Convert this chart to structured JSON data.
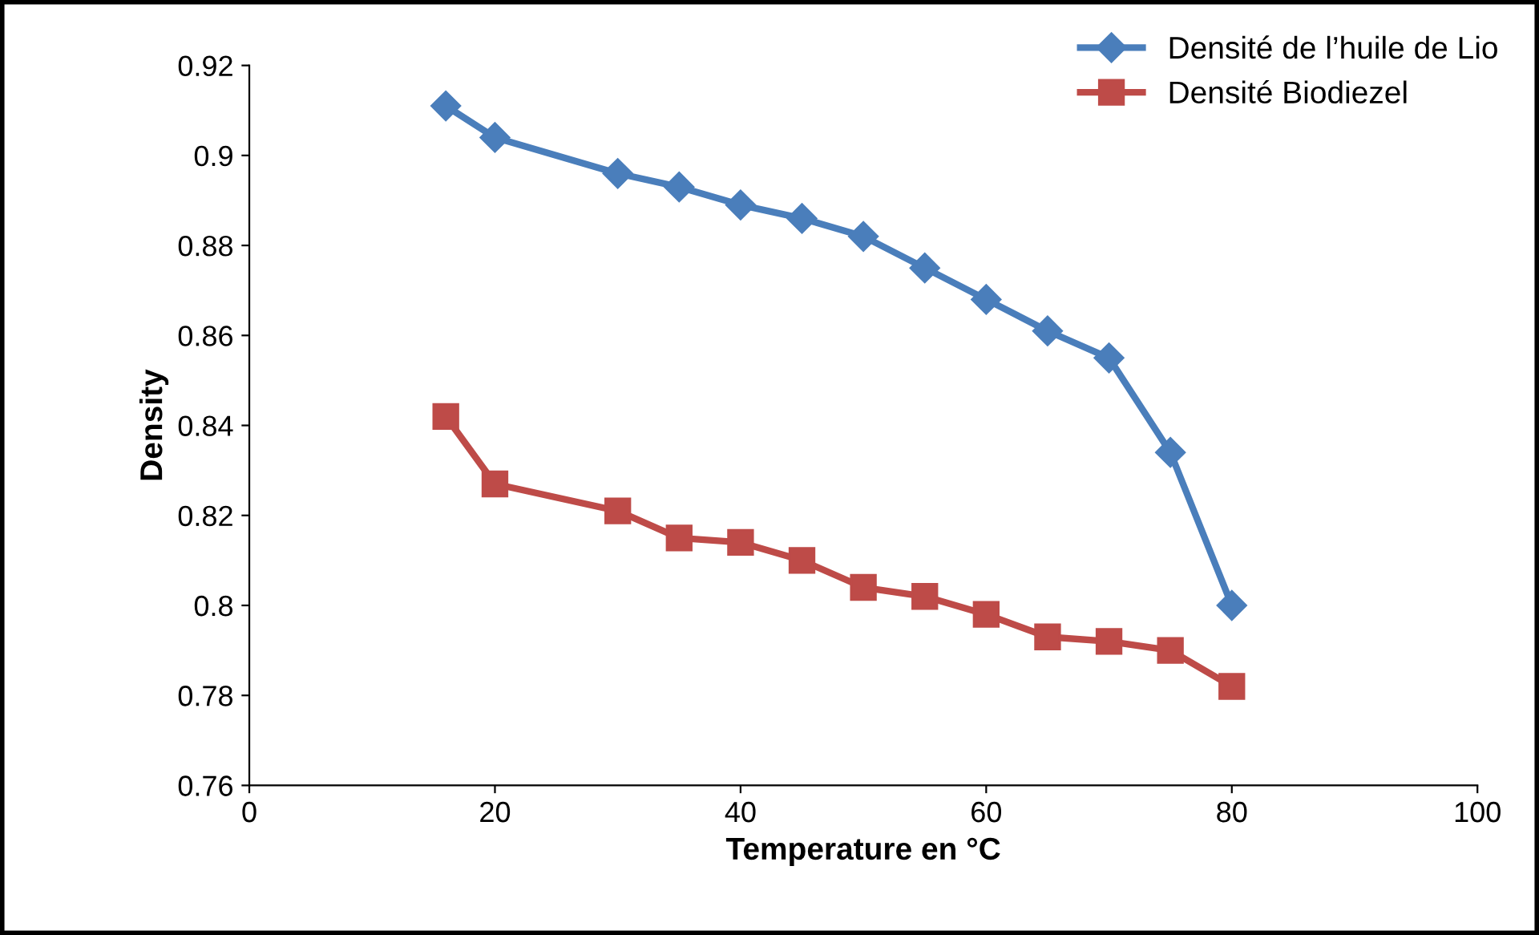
{
  "chart_data": {
    "type": "line",
    "xlabel": "Temperature en °C",
    "ylabel": "Density",
    "xlim": [
      0,
      100
    ],
    "xticks": [
      0,
      20,
      40,
      60,
      80,
      100
    ],
    "ylim": [
      0.76,
      0.92
    ],
    "yticks": [
      0.76,
      0.78,
      0.8,
      0.82,
      0.84,
      0.86,
      0.88,
      0.9,
      0.92
    ],
    "grid": false,
    "legend": "top right",
    "line_style": "solid",
    "series": [
      {
        "name": "Densité de l’huile de Lio",
        "color": "#4a7ebb",
        "marker": "diamond",
        "x": [
          16,
          20,
          30,
          35,
          40,
          45,
          50,
          55,
          60,
          65,
          70,
          75,
          80
        ],
        "values": [
          0.911,
          0.904,
          0.896,
          0.893,
          0.889,
          0.886,
          0.882,
          0.875,
          0.868,
          0.861,
          0.855,
          0.834,
          0.8
        ]
      },
      {
        "name": "Densité Biodiezel",
        "color": "#be4b48",
        "marker": "square",
        "x": [
          16,
          20,
          30,
          35,
          40,
          45,
          50,
          55,
          60,
          65,
          70,
          75,
          80
        ],
        "values": [
          0.842,
          0.827,
          0.821,
          0.815,
          0.814,
          0.81,
          0.804,
          0.802,
          0.798,
          0.793,
          0.792,
          0.79,
          0.782
        ]
      }
    ]
  }
}
